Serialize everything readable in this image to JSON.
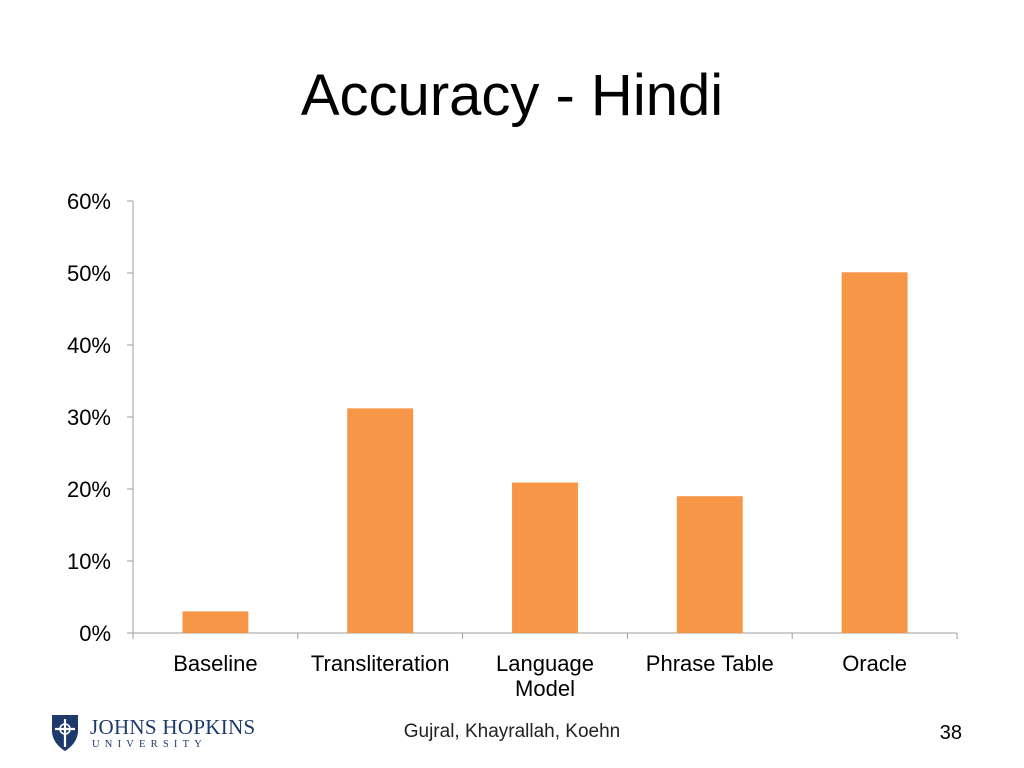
{
  "slide": {
    "title": "Accuracy - Hindi",
    "authors": "Gujral, Khayrallah, Koehn",
    "page_number": "38",
    "logo": {
      "name": "JOHNS HOPKINS",
      "sub": "UNIVERSITY",
      "icon": "jhu-shield-icon"
    }
  },
  "chart_data": {
    "type": "bar",
    "title": "",
    "xlabel": "",
    "ylabel": "",
    "categories": [
      "Baseline",
      "Transliteration",
      "Language Model",
      "Phrase Table",
      "Oracle"
    ],
    "category_lines": [
      [
        "Baseline"
      ],
      [
        "Transliteration"
      ],
      [
        "Language",
        "Model"
      ],
      [
        "Phrase Table"
      ],
      [
        "Oracle"
      ]
    ],
    "values": [
      3,
      31.2,
      20.9,
      19.0,
      50.1
    ],
    "ylim": [
      0,
      60
    ],
    "yticks": [
      0,
      10,
      20,
      30,
      40,
      50,
      60
    ],
    "ytick_labels": [
      "0%",
      "10%",
      "20%",
      "30%",
      "40%",
      "50%",
      "60%"
    ],
    "bar_color": "#f79646",
    "axis_color": "#9e9e9e",
    "grid": false,
    "legend": "none"
  }
}
